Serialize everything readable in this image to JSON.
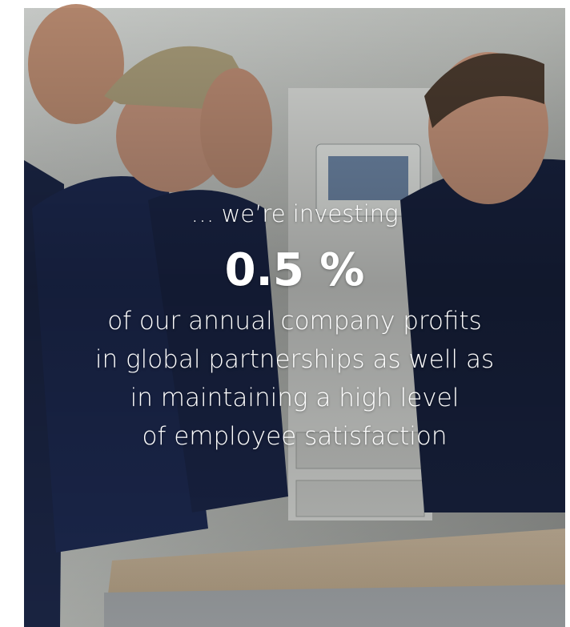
{
  "hero": {
    "intro": "… we’re investing",
    "highlight": "0.5 %",
    "lines": [
      "of our annual company profits",
      "in global partnerships as well as",
      "in maintaining a high level",
      "of employee satisfaction"
    ]
  }
}
